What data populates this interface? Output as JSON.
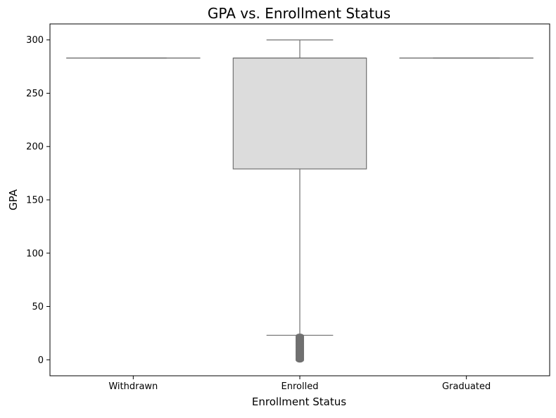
{
  "chart_data": {
    "type": "box",
    "title": "GPA vs. Enrollment Status",
    "xlabel": "Enrollment Status",
    "ylabel": "GPA",
    "categories": [
      "Withdrawn",
      "Enrolled",
      "Graduated"
    ],
    "ylim": [
      -15,
      315
    ],
    "yticks": [
      0,
      50,
      100,
      150,
      200,
      250,
      300
    ],
    "grid": false,
    "boxes": [
      {
        "category": "Withdrawn",
        "whisker_low": 283,
        "q1": 283,
        "median": 283,
        "q3": 283,
        "whisker_high": 283,
        "outliers": []
      },
      {
        "category": "Enrolled",
        "whisker_low": 23,
        "q1": 179,
        "median": 283,
        "q3": 283,
        "whisker_high": 300,
        "outliers": [
          0,
          1,
          2,
          3,
          4,
          5,
          6,
          7,
          8,
          9,
          10,
          11,
          12,
          13,
          14,
          15,
          16,
          17,
          18,
          19,
          20,
          21,
          22
        ]
      },
      {
        "category": "Graduated",
        "whisker_low": 283,
        "q1": 283,
        "median": 283,
        "q3": 283,
        "whisker_high": 283,
        "outliers": []
      }
    ],
    "colors": {
      "box_fill": "#dcdcdc",
      "line": "#707070",
      "outlier": "#707070",
      "axis": "#000000"
    }
  }
}
